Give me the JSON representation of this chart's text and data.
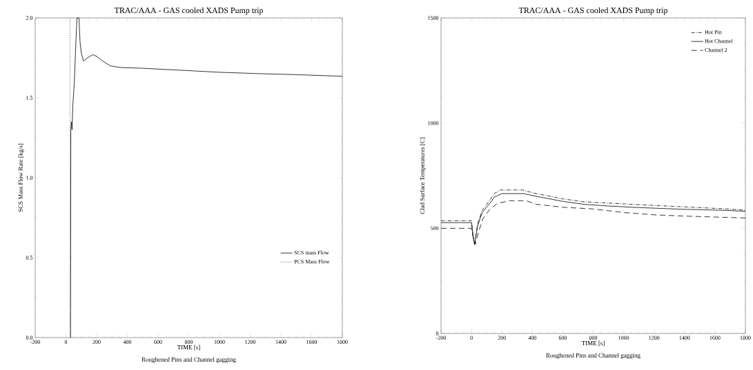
{
  "chart_data": [
    {
      "type": "line",
      "title": "TRAC/AAA - GAS cooled XADS Pump trip",
      "xlabel": "TIME [s]",
      "ylabel": "SCS Mass Flow Rate [kg/s]",
      "annotations": [
        "Roughened Pins and Channel gagging"
      ],
      "xlim": [
        -200,
        1800
      ],
      "xticks": [
        -200,
        0,
        200,
        400,
        600,
        800,
        1000,
        1200,
        1400,
        1600,
        1800
      ],
      "ylim": [
        0,
        2
      ],
      "yticks": [
        {
          "value": 0,
          "label": "0.0"
        },
        {
          "value": 0.5,
          "label": "0.5"
        },
        {
          "value": 1,
          "label": "1.0"
        },
        {
          "value": 1.5,
          "label": "1.5"
        },
        {
          "value": 2,
          "label": "2.0"
        }
      ],
      "legend": "bottom right",
      "series": [
        {
          "name": "SCS mass Flow",
          "color": "#000000",
          "line_style": "solid",
          "x": [
            30,
            32,
            36,
            40,
            45,
            55,
            65,
            72,
            85,
            92,
            100,
            115,
            140,
            175,
            200,
            240,
            290,
            350,
            500,
            700,
            1000,
            1300,
            1500,
            1800
          ],
          "values": [
            0,
            1.3,
            1.35,
            1.3,
            1.45,
            1.6,
            1.85,
            2.0,
            2.0,
            1.85,
            1.78,
            1.73,
            1.75,
            1.77,
            1.76,
            1.73,
            1.7,
            1.69,
            1.685,
            1.675,
            1.66,
            1.65,
            1.645,
            1.635
          ]
        },
        {
          "name": "PCS Mass Flow",
          "color": "#000000",
          "line_style": "dotted",
          "x": [
            27,
            27
          ],
          "values": [
            0,
            2.0
          ]
        }
      ]
    },
    {
      "type": "line",
      "title": "TRAC/AAA - GAS cooled XADS Pump trip",
      "xlabel": "TIME [s]",
      "ylabel": "Clad Surface Temperatures [C]",
      "annotations": [
        "Roughened Pins and Channel gagging"
      ],
      "xlim": [
        -200,
        1800
      ],
      "xticks": [
        -200,
        0,
        200,
        400,
        600,
        800,
        1000,
        1200,
        1400,
        1600,
        1800
      ],
      "ylim": [
        0,
        1500
      ],
      "yticks": [
        0,
        500,
        1000,
        1500
      ],
      "legend": "top right",
      "series": [
        {
          "name": "Hot Pin",
          "color": "#000000",
          "line_style": "dashdot",
          "x": [
            -200,
            0,
            10,
            20,
            40,
            70,
            113,
            150,
            191,
            332,
            426,
            600,
            739,
            900,
            1052,
            1365,
            1678,
            1800
          ],
          "values": [
            536,
            536,
            470,
            423,
            520,
            585,
            626,
            665,
            682,
            682,
            665,
            640,
            626,
            620,
            614,
            603,
            592,
            586
          ]
        },
        {
          "name": "Hot Channel",
          "color": "#000000",
          "line_style": "solid",
          "x": [
            -200,
            0,
            10,
            20,
            40,
            70,
            113,
            150,
            200,
            340,
            426,
            600,
            739,
            900,
            1052,
            1365,
            1678,
            1800
          ],
          "values": [
            527,
            527,
            465,
            423,
            510,
            575,
            612,
            648,
            665,
            665,
            652,
            628,
            614,
            606,
            600,
            591,
            585,
            581
          ]
        },
        {
          "name": "Channel 2",
          "color": "#000000",
          "line_style": "dashed",
          "x": [
            -200,
            0,
            10,
            25,
            45,
            75,
            120,
            170,
            250,
            360,
            426,
            600,
            800,
            1000,
            1200,
            1400,
            1800
          ],
          "values": [
            500,
            500,
            460,
            423,
            480,
            545,
            590,
            618,
            631,
            631,
            614,
            600,
            592,
            575,
            564,
            558,
            549
          ]
        }
      ]
    }
  ]
}
